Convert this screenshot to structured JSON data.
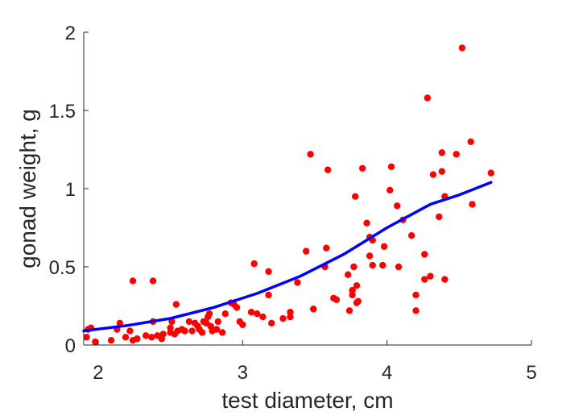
{
  "chart_data": {
    "type": "scatter",
    "title": "",
    "xlabel": "test diameter, cm",
    "ylabel": "gonad weight, g",
    "xlim": [
      1.9,
      5
    ],
    "ylim": [
      0,
      2
    ],
    "xticks": [
      2,
      3,
      4,
      5
    ],
    "yticks": [
      0,
      0.5,
      1,
      1.5,
      2
    ],
    "xtick_labels": [
      "2",
      "3",
      "4",
      "5"
    ],
    "ytick_labels": [
      "0",
      "0.5",
      "1",
      "1.5",
      "2"
    ],
    "grid": false,
    "legend": "none",
    "series": [
      {
        "kind": "scatter",
        "color": "#ff0000",
        "points": [
          [
            1.92,
            0.05
          ],
          [
            1.93,
            0.1
          ],
          [
            1.95,
            0.11
          ],
          [
            1.98,
            0.02
          ],
          [
            2.09,
            0.03
          ],
          [
            2.13,
            0.1
          ],
          [
            2.15,
            0.14
          ],
          [
            2.19,
            0.05
          ],
          [
            2.22,
            0.09
          ],
          [
            2.24,
            0.41
          ],
          [
            2.24,
            0.03
          ],
          [
            2.27,
            0.04
          ],
          [
            2.33,
            0.06
          ],
          [
            2.37,
            0.05
          ],
          [
            2.38,
            0.41
          ],
          [
            2.38,
            0.15
          ],
          [
            2.41,
            0.06
          ],
          [
            2.44,
            0.04
          ],
          [
            2.45,
            0.07
          ],
          [
            2.5,
            0.08
          ],
          [
            2.5,
            0.11
          ],
          [
            2.51,
            0.15
          ],
          [
            2.53,
            0.07
          ],
          [
            2.54,
            0.26
          ],
          [
            2.55,
            0.09
          ],
          [
            2.58,
            0.1
          ],
          [
            2.6,
            0.09
          ],
          [
            2.63,
            0.15
          ],
          [
            2.65,
            0.09
          ],
          [
            2.67,
            0.14
          ],
          [
            2.69,
            0.12
          ],
          [
            2.7,
            0.1
          ],
          [
            2.72,
            0.08
          ],
          [
            2.73,
            0.15
          ],
          [
            2.75,
            0.14
          ],
          [
            2.76,
            0.18
          ],
          [
            2.77,
            0.2
          ],
          [
            2.78,
            0.12
          ],
          [
            2.79,
            0.09
          ],
          [
            2.82,
            0.1
          ],
          [
            2.83,
            0.15
          ],
          [
            2.86,
            0.08
          ],
          [
            2.88,
            0.2
          ],
          [
            2.92,
            0.27
          ],
          [
            2.94,
            0.26
          ],
          [
            2.96,
            0.24
          ],
          [
            2.98,
            0.15
          ],
          [
            3.0,
            0.13
          ],
          [
            3.06,
            0.21
          ],
          [
            3.08,
            0.52
          ],
          [
            3.1,
            0.2
          ],
          [
            3.14,
            0.18
          ],
          [
            3.18,
            0.32
          ],
          [
            3.18,
            0.47
          ],
          [
            3.2,
            0.14
          ],
          [
            3.28,
            0.17
          ],
          [
            3.33,
            0.18
          ],
          [
            3.33,
            0.21
          ],
          [
            3.38,
            0.4
          ],
          [
            3.44,
            0.6
          ],
          [
            3.47,
            1.22
          ],
          [
            3.49,
            0.23
          ],
          [
            3.57,
            0.5
          ],
          [
            3.58,
            0.62
          ],
          [
            3.59,
            1.12
          ],
          [
            3.63,
            0.3
          ],
          [
            3.65,
            0.29
          ],
          [
            3.73,
            0.45
          ],
          [
            3.74,
            0.22
          ],
          [
            3.76,
            0.32
          ],
          [
            3.76,
            0.35
          ],
          [
            3.77,
            0.5
          ],
          [
            3.78,
            0.95
          ],
          [
            3.79,
            0.27
          ],
          [
            3.79,
            0.38
          ],
          [
            3.8,
            0.28
          ],
          [
            3.83,
            1.13
          ],
          [
            3.86,
            0.78
          ],
          [
            3.88,
            0.57
          ],
          [
            3.88,
            0.69
          ],
          [
            3.9,
            0.51
          ],
          [
            3.9,
            0.67
          ],
          [
            3.97,
            0.51
          ],
          [
            3.98,
            0.63
          ],
          [
            4.02,
            0.99
          ],
          [
            4.03,
            1.14
          ],
          [
            4.07,
            0.89
          ],
          [
            4.08,
            0.5
          ],
          [
            4.11,
            0.8
          ],
          [
            4.17,
            0.7
          ],
          [
            4.2,
            0.32
          ],
          [
            4.2,
            0.22
          ],
          [
            4.26,
            0.58
          ],
          [
            4.26,
            0.42
          ],
          [
            4.28,
            1.58
          ],
          [
            4.3,
            0.44
          ],
          [
            4.32,
            1.09
          ],
          [
            4.36,
            0.82
          ],
          [
            4.38,
            1.11
          ],
          [
            4.38,
            1.23
          ],
          [
            4.4,
            0.95
          ],
          [
            4.4,
            0.42
          ],
          [
            4.48,
            1.22
          ],
          [
            4.52,
            1.9
          ],
          [
            4.58,
            1.3
          ],
          [
            4.59,
            0.9
          ],
          [
            4.72,
            1.1
          ]
        ]
      },
      {
        "kind": "line",
        "color": "#0000ff",
        "points": [
          [
            1.9,
            0.09
          ],
          [
            2.2,
            0.125
          ],
          [
            2.5,
            0.17
          ],
          [
            2.8,
            0.24
          ],
          [
            3.1,
            0.33
          ],
          [
            3.4,
            0.44
          ],
          [
            3.7,
            0.58
          ],
          [
            4.0,
            0.75
          ],
          [
            4.3,
            0.9
          ],
          [
            4.5,
            0.96
          ],
          [
            4.72,
            1.04
          ]
        ]
      }
    ]
  }
}
